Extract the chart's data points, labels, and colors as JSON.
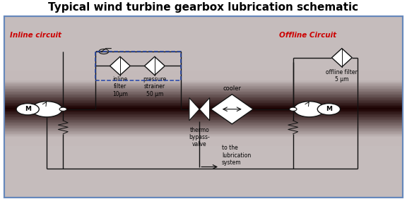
{
  "title": "Typical wind turbine gearbox lubrication schematic",
  "title_fontsize": 11,
  "title_fontweight": "bold",
  "bg_outer": "#ffffff",
  "border_color": "#6688bb",
  "inline_label": "Inline circuit",
  "offline_label": "Offline Circuit",
  "label_color": "#cc0000",
  "label_fontsize": 7.5,
  "dashed_box_color": "#2244aa",
  "inline_filter_label": "inline\nfilter\n10μm",
  "pressure_strainer_label": "pressure\nstrainer\n50 μm",
  "offline_filter_label": "offline filter\n5 μm",
  "cooler_label": "cooler",
  "thermo_label": "thermo\nbypass-\nvalve",
  "lubrication_label": "to the\nlubrication\nsystem",
  "line_color": "#111111",
  "component_fill": "#ffffff"
}
